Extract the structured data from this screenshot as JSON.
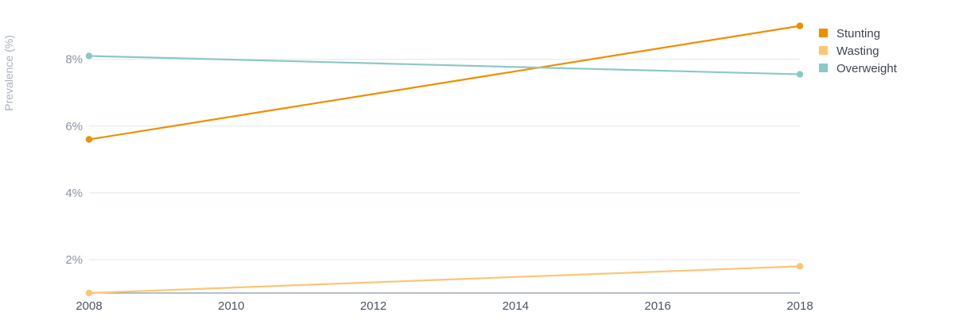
{
  "chart_data": {
    "type": "line",
    "title": "",
    "xlabel": "",
    "ylabel": "Prevalence (%)",
    "x": [
      2008,
      2018
    ],
    "xticks": [
      "2008",
      "2010",
      "2012",
      "2014",
      "2016",
      "2018"
    ],
    "xlim": [
      2008,
      2018
    ],
    "yticks": [
      2,
      4,
      6,
      8
    ],
    "ytick_labels": [
      "2%",
      "4%",
      "6%",
      "8%"
    ],
    "ylim": [
      1,
      9.3
    ],
    "grid": true,
    "legend_position": "top-right",
    "series": [
      {
        "name": "Stunting",
        "color": "#ee8e00",
        "values": [
          5.6,
          9.0
        ]
      },
      {
        "name": "Wasting",
        "color": "#fcc575",
        "values": [
          1.0,
          1.8
        ]
      },
      {
        "name": "Overweight",
        "color": "#8cc8c5",
        "values": [
          8.1,
          7.55
        ]
      }
    ]
  }
}
